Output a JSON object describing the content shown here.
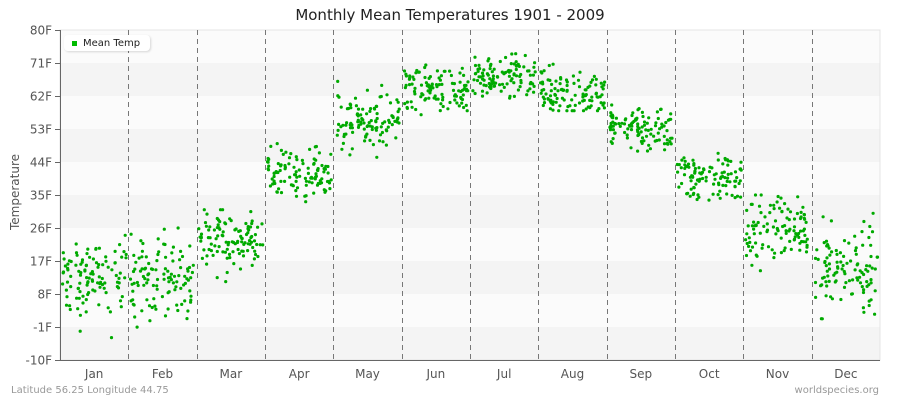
{
  "chart_data": {
    "type": "scatter",
    "title": "Monthly Mean Temperatures 1901 - 2009",
    "xlabel": "",
    "ylabel": "Temperature",
    "ylim": [
      -10,
      80
    ],
    "y_ticks": [
      "80F",
      "71F",
      "62F",
      "53F",
      "44F",
      "35F",
      "26F",
      "17F",
      "8F",
      "-1F",
      "-10F"
    ],
    "y_tick_values": [
      80,
      71,
      62,
      53,
      44,
      35,
      26,
      17,
      8,
      -1,
      -10
    ],
    "categories": [
      "Jan",
      "Feb",
      "Mar",
      "Apr",
      "May",
      "Jun",
      "Jul",
      "Aug",
      "Sep",
      "Oct",
      "Nov",
      "Dec"
    ],
    "grid": "alternating horizontal bands, dashed vertical month separators",
    "legend": {
      "position": "top-left",
      "entries": [
        "Mean Temp"
      ]
    },
    "series": [
      {
        "name": "Mean Temp",
        "color": "#00aa00",
        "points_per_month": 109,
        "monthly_summary": [
          {
            "month": "Jan",
            "min": -6,
            "max": 24,
            "mean": 12
          },
          {
            "month": "Feb",
            "min": -3,
            "max": 26,
            "mean": 12
          },
          {
            "month": "Mar",
            "min": 11,
            "max": 31,
            "mean": 23
          },
          {
            "month": "Apr",
            "min": 33,
            "max": 50,
            "mean": 41
          },
          {
            "month": "May",
            "min": 44,
            "max": 66,
            "mean": 54
          },
          {
            "month": "Jun",
            "min": 55,
            "max": 72,
            "mean": 64
          },
          {
            "month": "Jul",
            "min": 60,
            "max": 74,
            "mean": 67
          },
          {
            "month": "Aug",
            "min": 58,
            "max": 71,
            "mean": 63
          },
          {
            "month": "Sep",
            "min": 46,
            "max": 61,
            "mean": 53
          },
          {
            "month": "Oct",
            "min": 30,
            "max": 47,
            "mean": 40
          },
          {
            "month": "Nov",
            "min": 14,
            "max": 35,
            "mean": 26
          },
          {
            "month": "Dec",
            "min": -1,
            "max": 30,
            "mean": 15
          }
        ]
      }
    ]
  },
  "legend_label": "Mean Temp",
  "footer": {
    "location": "Latitude 56.25 Longitude 44.75",
    "source": "worldspecies.org"
  }
}
